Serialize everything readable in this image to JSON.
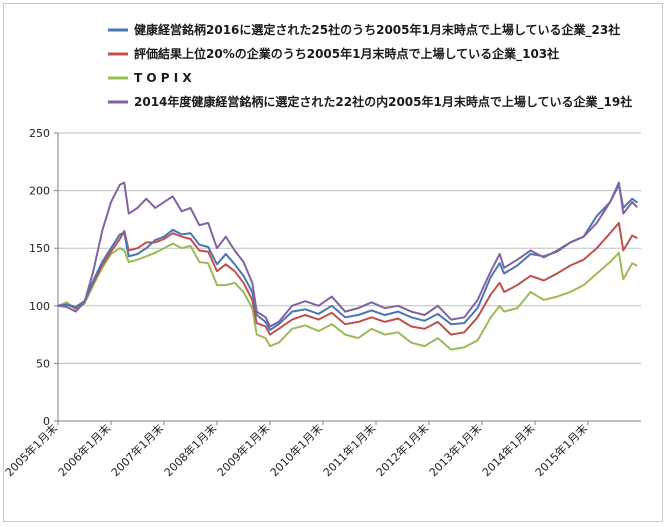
{
  "chart_data": {
    "type": "line",
    "title": "",
    "xlabel": "",
    "ylabel": "",
    "ylim": [
      0,
      250
    ],
    "yticks": [
      0,
      50,
      100,
      150,
      200,
      250
    ],
    "xlim": [
      "2005-01",
      "2016-01"
    ],
    "x_tick_labels": [
      "2005年1月末",
      "2006年1月末",
      "2007年1月末",
      "2008年1月末",
      "2009年1月末",
      "2010年1月末",
      "2011年1月末",
      "2012年1月末",
      "2013年1月末",
      "2014年1月末",
      "2015年1月末"
    ],
    "grid": "horizontal",
    "legend_position": "top",
    "series": [
      {
        "name": "健康経営銘柄2016に選定された25社のうち2005年1月末時点で上場している企業_23社",
        "color": "#4a76b5",
        "points": [
          [
            "2005-01",
            100
          ],
          [
            "2005-03",
            101
          ],
          [
            "2005-05",
            99
          ],
          [
            "2005-07",
            104
          ],
          [
            "2005-09",
            122
          ],
          [
            "2005-11",
            138
          ],
          [
            "2006-01",
            150
          ],
          [
            "2006-03",
            162
          ],
          [
            "2006-04",
            163
          ],
          [
            "2006-05",
            143
          ],
          [
            "2006-07",
            145
          ],
          [
            "2006-09",
            150
          ],
          [
            "2006-11",
            157
          ],
          [
            "2007-01",
            160
          ],
          [
            "2007-03",
            166
          ],
          [
            "2007-05",
            162
          ],
          [
            "2007-07",
            163
          ],
          [
            "2007-09",
            153
          ],
          [
            "2007-11",
            151
          ],
          [
            "2008-01",
            136
          ],
          [
            "2008-03",
            145
          ],
          [
            "2008-05",
            136
          ],
          [
            "2008-07",
            126
          ],
          [
            "2008-09",
            112
          ],
          [
            "2008-10",
            92
          ],
          [
            "2008-12",
            86
          ],
          [
            "2009-01",
            79
          ],
          [
            "2009-03",
            84
          ],
          [
            "2009-06",
            95
          ],
          [
            "2009-09",
            97
          ],
          [
            "2009-12",
            93
          ],
          [
            "2010-03",
            100
          ],
          [
            "2010-06",
            90
          ],
          [
            "2010-09",
            92
          ],
          [
            "2010-12",
            96
          ],
          [
            "2011-03",
            92
          ],
          [
            "2011-06",
            95
          ],
          [
            "2011-09",
            90
          ],
          [
            "2011-12",
            87
          ],
          [
            "2012-03",
            93
          ],
          [
            "2012-06",
            84
          ],
          [
            "2012-09",
            85
          ],
          [
            "2012-12",
            98
          ],
          [
            "2013-03",
            125
          ],
          [
            "2013-05",
            137
          ],
          [
            "2013-06",
            128
          ],
          [
            "2013-09",
            135
          ],
          [
            "2013-12",
            145
          ],
          [
            "2014-03",
            143
          ],
          [
            "2014-06",
            147
          ],
          [
            "2014-09",
            155
          ],
          [
            "2014-12",
            160
          ],
          [
            "2015-03",
            178
          ],
          [
            "2015-06",
            190
          ],
          [
            "2015-08",
            205
          ],
          [
            "2015-09",
            185
          ],
          [
            "2015-11",
            193
          ],
          [
            "2015-12",
            190
          ]
        ]
      },
      {
        "name": "評価結果上位20%の企業のうち2005年1月末時点で上場している企業_103社",
        "color": "#c0504d",
        "points": [
          [
            "2005-01",
            100
          ],
          [
            "2005-03",
            101
          ],
          [
            "2005-05",
            98
          ],
          [
            "2005-07",
            104
          ],
          [
            "2005-09",
            120
          ],
          [
            "2005-11",
            135
          ],
          [
            "2006-01",
            147
          ],
          [
            "2006-03",
            158
          ],
          [
            "2006-04",
            165
          ],
          [
            "2006-05",
            148
          ],
          [
            "2006-07",
            150
          ],
          [
            "2006-09",
            155
          ],
          [
            "2006-11",
            155
          ],
          [
            "2007-01",
            158
          ],
          [
            "2007-03",
            163
          ],
          [
            "2007-05",
            160
          ],
          [
            "2007-07",
            158
          ],
          [
            "2007-09",
            148
          ],
          [
            "2007-11",
            147
          ],
          [
            "2008-01",
            130
          ],
          [
            "2008-03",
            136
          ],
          [
            "2008-05",
            130
          ],
          [
            "2008-07",
            120
          ],
          [
            "2008-09",
            105
          ],
          [
            "2008-10",
            85
          ],
          [
            "2008-12",
            82
          ],
          [
            "2009-01",
            75
          ],
          [
            "2009-03",
            80
          ],
          [
            "2009-06",
            88
          ],
          [
            "2009-09",
            92
          ],
          [
            "2009-12",
            88
          ],
          [
            "2010-03",
            94
          ],
          [
            "2010-06",
            84
          ],
          [
            "2010-09",
            86
          ],
          [
            "2010-12",
            90
          ],
          [
            "2011-03",
            86
          ],
          [
            "2011-06",
            89
          ],
          [
            "2011-09",
            82
          ],
          [
            "2011-12",
            80
          ],
          [
            "2012-03",
            86
          ],
          [
            "2012-06",
            75
          ],
          [
            "2012-09",
            77
          ],
          [
            "2012-12",
            90
          ],
          [
            "2013-03",
            110
          ],
          [
            "2013-05",
            120
          ],
          [
            "2013-06",
            112
          ],
          [
            "2013-09",
            118
          ],
          [
            "2013-12",
            126
          ],
          [
            "2014-03",
            122
          ],
          [
            "2014-06",
            128
          ],
          [
            "2014-09",
            135
          ],
          [
            "2014-12",
            140
          ],
          [
            "2015-03",
            150
          ],
          [
            "2015-06",
            163
          ],
          [
            "2015-08",
            172
          ],
          [
            "2015-09",
            148
          ],
          [
            "2015-11",
            161
          ],
          [
            "2015-12",
            159
          ]
        ]
      },
      {
        "name": "T O P I X",
        "color": "#9bbb59",
        "points": [
          [
            "2005-01",
            100
          ],
          [
            "2005-03",
            103
          ],
          [
            "2005-05",
            97
          ],
          [
            "2005-07",
            102
          ],
          [
            "2005-09",
            118
          ],
          [
            "2005-11",
            133
          ],
          [
            "2006-01",
            145
          ],
          [
            "2006-03",
            150
          ],
          [
            "2006-04",
            148
          ],
          [
            "2006-05",
            138
          ],
          [
            "2006-07",
            140
          ],
          [
            "2006-09",
            143
          ],
          [
            "2006-11",
            146
          ],
          [
            "2007-01",
            150
          ],
          [
            "2007-03",
            154
          ],
          [
            "2007-05",
            150
          ],
          [
            "2007-07",
            152
          ],
          [
            "2007-09",
            138
          ],
          [
            "2007-11",
            137
          ],
          [
            "2008-01",
            118
          ],
          [
            "2008-03",
            118
          ],
          [
            "2008-05",
            120
          ],
          [
            "2008-07",
            112
          ],
          [
            "2008-09",
            98
          ],
          [
            "2008-10",
            75
          ],
          [
            "2008-12",
            72
          ],
          [
            "2009-01",
            65
          ],
          [
            "2009-03",
            68
          ],
          [
            "2009-06",
            80
          ],
          [
            "2009-09",
            83
          ],
          [
            "2009-12",
            78
          ],
          [
            "2010-03",
            84
          ],
          [
            "2010-06",
            75
          ],
          [
            "2010-09",
            72
          ],
          [
            "2010-12",
            80
          ],
          [
            "2011-03",
            75
          ],
          [
            "2011-06",
            77
          ],
          [
            "2011-09",
            68
          ],
          [
            "2011-12",
            65
          ],
          [
            "2012-03",
            72
          ],
          [
            "2012-06",
            62
          ],
          [
            "2012-09",
            64
          ],
          [
            "2012-12",
            70
          ],
          [
            "2013-03",
            90
          ],
          [
            "2013-05",
            100
          ],
          [
            "2013-06",
            95
          ],
          [
            "2013-09",
            98
          ],
          [
            "2013-12",
            112
          ],
          [
            "2014-03",
            105
          ],
          [
            "2014-06",
            108
          ],
          [
            "2014-09",
            112
          ],
          [
            "2014-12",
            118
          ],
          [
            "2015-03",
            128
          ],
          [
            "2015-06",
            138
          ],
          [
            "2015-08",
            146
          ],
          [
            "2015-09",
            123
          ],
          [
            "2015-11",
            137
          ],
          [
            "2015-12",
            135
          ]
        ]
      },
      {
        "name": "2014年度健康経営銘柄に選定された22社の内2005年1月末時点で上場している企業_19社",
        "color": "#8064a2",
        "points": [
          [
            "2005-01",
            100
          ],
          [
            "2005-03",
            99
          ],
          [
            "2005-05",
            95
          ],
          [
            "2005-07",
            103
          ],
          [
            "2005-09",
            130
          ],
          [
            "2005-11",
            165
          ],
          [
            "2006-01",
            190
          ],
          [
            "2006-03",
            205
          ],
          [
            "2006-04",
            207
          ],
          [
            "2006-05",
            180
          ],
          [
            "2006-07",
            185
          ],
          [
            "2006-09",
            193
          ],
          [
            "2006-11",
            185
          ],
          [
            "2007-01",
            190
          ],
          [
            "2007-03",
            195
          ],
          [
            "2007-05",
            182
          ],
          [
            "2007-07",
            185
          ],
          [
            "2007-09",
            170
          ],
          [
            "2007-11",
            172
          ],
          [
            "2008-01",
            150
          ],
          [
            "2008-03",
            160
          ],
          [
            "2008-05",
            148
          ],
          [
            "2008-07",
            138
          ],
          [
            "2008-09",
            120
          ],
          [
            "2008-10",
            95
          ],
          [
            "2008-12",
            90
          ],
          [
            "2009-01",
            82
          ],
          [
            "2009-03",
            86
          ],
          [
            "2009-06",
            100
          ],
          [
            "2009-09",
            104
          ],
          [
            "2009-12",
            100
          ],
          [
            "2010-03",
            108
          ],
          [
            "2010-06",
            95
          ],
          [
            "2010-09",
            98
          ],
          [
            "2010-12",
            103
          ],
          [
            "2011-03",
            98
          ],
          [
            "2011-06",
            100
          ],
          [
            "2011-09",
            95
          ],
          [
            "2011-12",
            92
          ],
          [
            "2012-03",
            100
          ],
          [
            "2012-06",
            88
          ],
          [
            "2012-09",
            90
          ],
          [
            "2012-12",
            105
          ],
          [
            "2013-03",
            130
          ],
          [
            "2013-05",
            145
          ],
          [
            "2013-06",
            133
          ],
          [
            "2013-09",
            140
          ],
          [
            "2013-12",
            148
          ],
          [
            "2014-03",
            142
          ],
          [
            "2014-06",
            148
          ],
          [
            "2014-09",
            155
          ],
          [
            "2014-12",
            160
          ],
          [
            "2015-03",
            172
          ],
          [
            "2015-06",
            190
          ],
          [
            "2015-08",
            207
          ],
          [
            "2015-09",
            180
          ],
          [
            "2015-11",
            190
          ],
          [
            "2015-12",
            186
          ]
        ]
      }
    ]
  }
}
